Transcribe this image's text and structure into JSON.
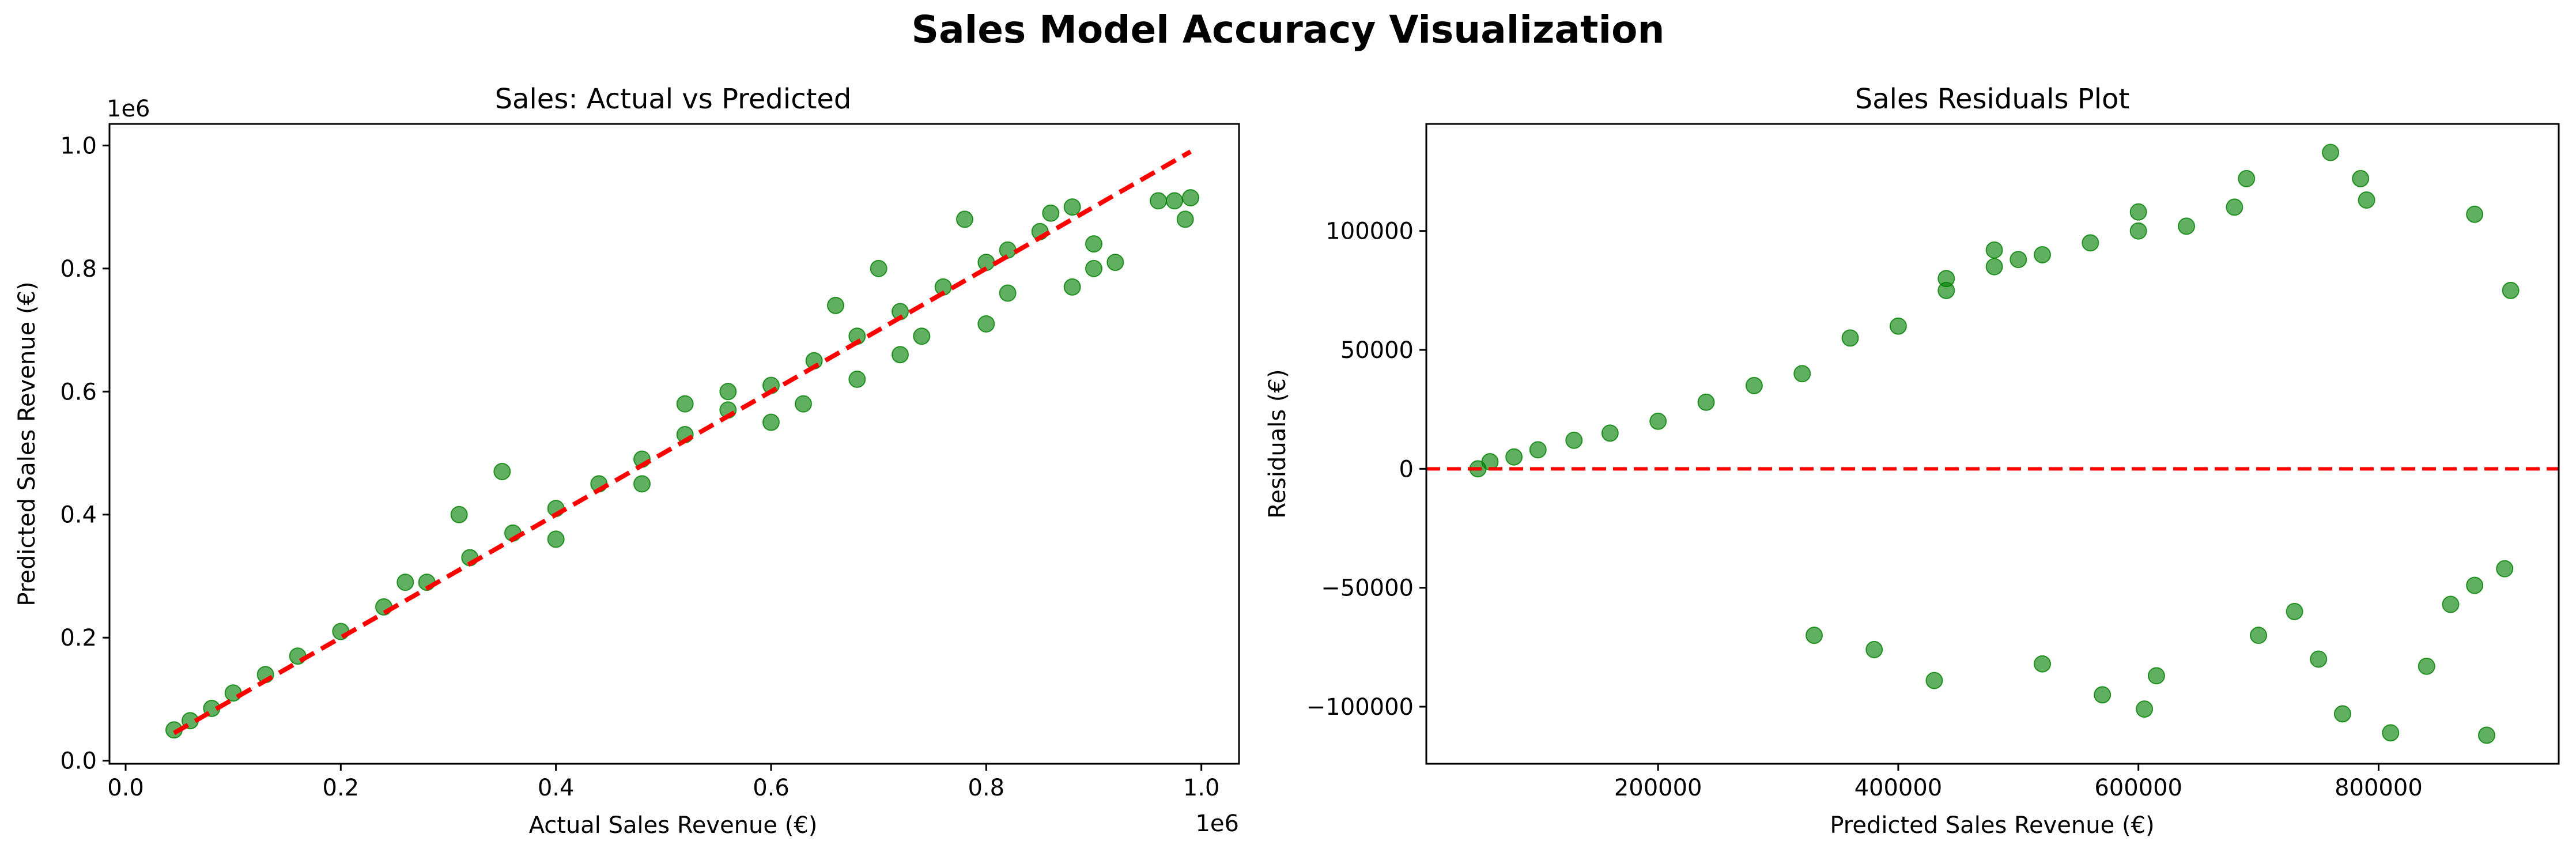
{
  "figure": {
    "title": "Sales Model Accuracy Visualization"
  },
  "colors": {
    "points": "#008000",
    "reference_line": "#ff0000",
    "axes": "#000000",
    "background": "#ffffff"
  },
  "chart_data": [
    {
      "type": "scatter",
      "title": "Sales: Actual vs Predicted",
      "xlabel": "Actual Sales Revenue (€)",
      "ylabel": "Predicted Sales Revenue (€)",
      "x_offset_label": "1e6",
      "y_offset_label": "1e6",
      "xlim": [
        -0.015,
        1.035
      ],
      "ylim": [
        -0.005,
        1.035
      ],
      "x_ticks": [
        0.0,
        0.2,
        0.4,
        0.6,
        0.8,
        1.0
      ],
      "x_tick_labels": [
        "0.0",
        "0.2",
        "0.4",
        "0.6",
        "0.8",
        "1.0"
      ],
      "y_ticks": [
        0.0,
        0.2,
        0.4,
        0.6,
        0.8,
        1.0
      ],
      "y_tick_labels": [
        "0.0",
        "0.2",
        "0.4",
        "0.6",
        "0.8",
        "1.0"
      ],
      "grid": false,
      "reference_line": {
        "style": "dashed",
        "from": [
          0.045,
          0.045
        ],
        "to": [
          0.99,
          0.99
        ]
      },
      "series": [
        {
          "x": [
            0.045,
            0.06,
            0.08,
            0.1,
            0.13,
            0.16,
            0.2,
            0.24,
            0.28,
            0.32,
            0.36,
            0.4,
            0.44,
            0.48,
            0.52,
            0.56,
            0.6,
            0.64,
            0.68,
            0.72,
            0.76,
            0.8,
            0.82,
            0.85,
            0.86,
            0.88,
            0.9,
            0.92,
            0.96,
            0.975,
            0.99,
            0.985,
            0.31,
            0.26,
            0.35,
            0.52,
            0.56,
            0.63,
            0.66,
            0.7,
            0.72,
            0.78,
            0.8,
            0.82,
            0.48,
            0.4,
            0.6,
            0.68,
            0.74,
            0.9,
            0.88
          ],
          "y": [
            0.05,
            0.065,
            0.085,
            0.11,
            0.14,
            0.17,
            0.21,
            0.25,
            0.29,
            0.33,
            0.37,
            0.41,
            0.45,
            0.49,
            0.53,
            0.57,
            0.61,
            0.65,
            0.69,
            0.73,
            0.77,
            0.81,
            0.83,
            0.86,
            0.89,
            0.9,
            0.8,
            0.81,
            0.91,
            0.91,
            0.915,
            0.88,
            0.4,
            0.29,
            0.47,
            0.58,
            0.6,
            0.58,
            0.74,
            0.8,
            0.66,
            0.88,
            0.71,
            0.76,
            0.45,
            0.36,
            0.55,
            0.62,
            0.69,
            0.84,
            0.77
          ]
        }
      ]
    },
    {
      "type": "scatter",
      "title": "Sales Residuals Plot",
      "xlabel": "Predicted Sales Revenue (€)",
      "ylabel": "Residuals (€)",
      "xlim": [
        7000,
        950000
      ],
      "ylim": [
        -124000,
        145000
      ],
      "x_ticks": [
        200000,
        400000,
        600000,
        800000
      ],
      "x_tick_labels": [
        "200000",
        "400000",
        "600000",
        "800000"
      ],
      "y_ticks": [
        -100000,
        -50000,
        0,
        50000,
        100000
      ],
      "y_tick_labels": [
        "−100000",
        "−50000",
        "0",
        "50000",
        "100000"
      ],
      "grid": false,
      "reference_line": {
        "style": "dashed",
        "y": 0
      },
      "series": [
        {
          "x": [
            50000,
            60000,
            80000,
            100000,
            130000,
            160000,
            200000,
            240000,
            280000,
            320000,
            360000,
            400000,
            440000,
            480000,
            520000,
            560000,
            600000,
            640000,
            680000,
            690000,
            760000,
            785000,
            790000,
            880000,
            910000,
            890000,
            770000,
            810000,
            840000,
            605000,
            615000,
            520000,
            430000,
            330000,
            380000,
            570000,
            700000,
            730000,
            750000,
            860000,
            880000,
            905000,
            600000,
            480000,
            500000,
            440000
          ],
          "y": [
            0,
            3000,
            5000,
            8000,
            12000,
            15000,
            20000,
            28000,
            35000,
            40000,
            55000,
            60000,
            75000,
            85000,
            90000,
            95000,
            100000,
            102000,
            110000,
            122000,
            133000,
            122000,
            113000,
            107000,
            75000,
            -112000,
            -103000,
            -111000,
            -83000,
            -101000,
            -87000,
            -82000,
            -89000,
            -70000,
            -76000,
            -95000,
            -70000,
            -60000,
            -80000,
            -57000,
            -49000,
            -42000,
            108000,
            92000,
            88000,
            80000
          ]
        }
      ]
    }
  ]
}
